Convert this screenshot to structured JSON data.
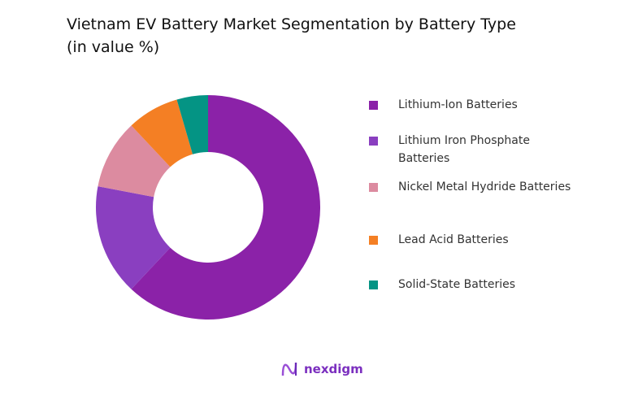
{
  "title_line1": "Vietnam EV Battery Market Segmentation by Battery Type",
  "title_line2": "(in value %)",
  "chart_data": {
    "type": "pie",
    "variant": "donut",
    "title": "Vietnam EV Battery Market Segmentation by Battery Type (in value %)",
    "categories": [
      "Lithium-Ion Batteries",
      "Lithium Iron Phosphate Batteries",
      "Nickel Metal Hydride Batteries",
      "Lead Acid Batteries",
      "Solid-State Batteries"
    ],
    "values": [
      62,
      16,
      10,
      7.5,
      4.5
    ],
    "colors": [
      "#8B22A8",
      "#8A3FC0",
      "#DC8BA0",
      "#F47F24",
      "#049484"
    ],
    "legend_position": "right"
  },
  "legend": [
    {
      "label": "Lithium-Ion Batteries"
    },
    {
      "label": "Lithium Iron Phosphate Batteries"
    },
    {
      "label": "Nickel Metal Hydride Batteries"
    },
    {
      "label": "Lead Acid Batteries"
    },
    {
      "label": "Solid-State Batteries"
    }
  ],
  "logo": {
    "text": "nexdigm",
    "color": "#7b2fbf"
  }
}
